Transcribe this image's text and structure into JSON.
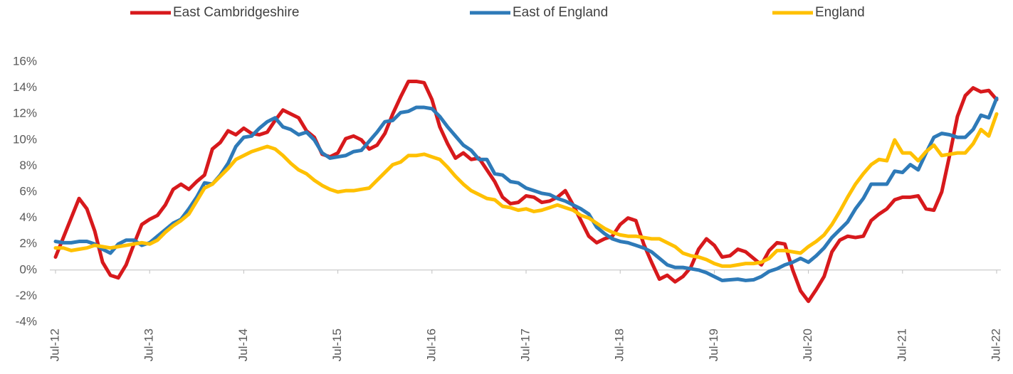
{
  "chart_data": {
    "type": "line",
    "categories": [
      "Jul-12",
      null,
      null,
      null,
      null,
      null,
      null,
      null,
      null,
      null,
      null,
      null,
      "Jul-13",
      null,
      null,
      null,
      null,
      null,
      null,
      null,
      null,
      null,
      null,
      null,
      "Jul-14",
      null,
      null,
      null,
      null,
      null,
      null,
      null,
      null,
      null,
      null,
      null,
      "Jul-15",
      null,
      null,
      null,
      null,
      null,
      null,
      null,
      null,
      null,
      null,
      null,
      "Jul-16",
      null,
      null,
      null,
      null,
      null,
      null,
      null,
      null,
      null,
      null,
      null,
      "Jul-17",
      null,
      null,
      null,
      null,
      null,
      null,
      null,
      null,
      null,
      null,
      null,
      "Jul-18",
      null,
      null,
      null,
      null,
      null,
      null,
      null,
      null,
      null,
      null,
      null,
      "Jul-19",
      null,
      null,
      null,
      null,
      null,
      null,
      null,
      null,
      null,
      null,
      null,
      "Jul-20",
      null,
      null,
      null,
      null,
      null,
      null,
      null,
      null,
      null,
      null,
      null,
      "Jul-21",
      null,
      null,
      null,
      null,
      null,
      null,
      null,
      null,
      null,
      null,
      null,
      "Jul-22"
    ],
    "series": [
      {
        "name": "East Cambridgeshire",
        "color": "#d7191c",
        "values": [
          1.0,
          2.5,
          4.0,
          5.5,
          4.7,
          3.0,
          0.6,
          -0.4,
          -0.6,
          0.4,
          2.0,
          3.5,
          3.9,
          4.2,
          5.0,
          6.2,
          6.6,
          6.2,
          6.8,
          7.3,
          9.3,
          9.8,
          10.7,
          10.4,
          10.9,
          10.5,
          10.4,
          10.6,
          11.5,
          12.3,
          12.0,
          11.7,
          10.7,
          10.2,
          8.9,
          8.7,
          9.0,
          10.1,
          10.3,
          10.0,
          9.3,
          9.6,
          10.5,
          12.0,
          13.3,
          14.5,
          14.5,
          14.4,
          13.1,
          11.0,
          9.7,
          8.6,
          9.0,
          8.5,
          8.6,
          7.7,
          6.8,
          5.6,
          5.1,
          5.2,
          5.7,
          5.6,
          5.2,
          5.3,
          5.6,
          6.1,
          5.0,
          3.8,
          2.6,
          2.1,
          2.4,
          2.6,
          3.5,
          4.0,
          3.8,
          2.0,
          0.6,
          -0.7,
          -0.4,
          -0.9,
          -0.5,
          0.2,
          1.6,
          2.4,
          1.9,
          1.0,
          1.1,
          1.6,
          1.4,
          0.9,
          0.4,
          1.5,
          2.1,
          2.0,
          0.0,
          -1.6,
          -2.4,
          -1.5,
          -0.5,
          1.4,
          2.3,
          2.6,
          2.5,
          2.6,
          3.8,
          4.3,
          4.7,
          5.4,
          5.6,
          5.6,
          5.7,
          4.7,
          4.6,
          6.0,
          8.8,
          11.8,
          13.4,
          14.0,
          13.7,
          13.8,
          13.1
        ]
      },
      {
        "name": "East of England",
        "color": "#2e7ab8",
        "values": [
          2.2,
          2.1,
          2.1,
          2.2,
          2.2,
          2.0,
          1.6,
          1.3,
          2.0,
          2.3,
          2.3,
          1.9,
          2.1,
          2.6,
          3.1,
          3.6,
          3.9,
          4.7,
          5.6,
          6.7,
          6.6,
          7.3,
          8.2,
          9.5,
          10.2,
          10.3,
          10.9,
          11.4,
          11.7,
          11.0,
          10.8,
          10.4,
          10.6,
          10.0,
          9.0,
          8.6,
          8.7,
          8.8,
          9.1,
          9.2,
          9.9,
          10.6,
          11.4,
          11.5,
          12.1,
          12.2,
          12.5,
          12.5,
          12.4,
          11.8,
          11.0,
          10.3,
          9.6,
          9.2,
          8.5,
          8.5,
          7.4,
          7.3,
          6.8,
          6.7,
          6.3,
          6.1,
          5.9,
          5.8,
          5.5,
          5.3,
          5.0,
          4.7,
          4.3,
          3.3,
          2.8,
          2.4,
          2.2,
          2.1,
          1.9,
          1.7,
          1.4,
          0.9,
          0.4,
          0.2,
          0.2,
          0.1,
          0.0,
          -0.2,
          -0.5,
          -0.8,
          -0.75,
          -0.7,
          -0.8,
          -0.75,
          -0.5,
          -0.1,
          0.1,
          0.4,
          0.6,
          0.9,
          0.6,
          1.1,
          1.7,
          2.5,
          3.1,
          3.7,
          4.7,
          5.5,
          6.6,
          6.6,
          6.6,
          7.6,
          7.5,
          8.1,
          7.7,
          9.0,
          10.2,
          10.5,
          10.4,
          10.2,
          10.2,
          10.8,
          11.9,
          11.7,
          13.2
        ]
      },
      {
        "name": "England",
        "color": "#ffc000",
        "values": [
          1.7,
          1.7,
          1.5,
          1.6,
          1.7,
          1.9,
          1.8,
          1.7,
          1.8,
          1.9,
          2.0,
          2.1,
          2.0,
          2.3,
          2.9,
          3.4,
          3.8,
          4.3,
          5.3,
          6.3,
          6.6,
          7.2,
          7.8,
          8.5,
          8.8,
          9.1,
          9.3,
          9.5,
          9.3,
          8.8,
          8.2,
          7.7,
          7.4,
          6.9,
          6.5,
          6.2,
          6.0,
          6.1,
          6.1,
          6.2,
          6.3,
          6.9,
          7.5,
          8.1,
          8.3,
          8.8,
          8.8,
          8.9,
          8.7,
          8.5,
          7.9,
          7.2,
          6.6,
          6.1,
          5.8,
          5.5,
          5.4,
          4.9,
          4.8,
          4.6,
          4.7,
          4.5,
          4.6,
          4.8,
          5.0,
          4.8,
          4.6,
          4.2,
          4.0,
          3.6,
          3.2,
          2.9,
          2.7,
          2.6,
          2.6,
          2.5,
          2.4,
          2.4,
          2.1,
          1.8,
          1.3,
          1.1,
          1.0,
          0.8,
          0.5,
          0.3,
          0.3,
          0.4,
          0.5,
          0.5,
          0.6,
          0.9,
          1.5,
          1.5,
          1.4,
          1.3,
          1.8,
          2.2,
          2.7,
          3.5,
          4.5,
          5.6,
          6.6,
          7.4,
          8.1,
          8.5,
          8.4,
          10.0,
          9.0,
          9.0,
          8.4,
          9.1,
          9.6,
          8.8,
          8.9,
          9.0,
          9.0,
          9.7,
          10.8,
          10.3,
          12.0
        ]
      }
    ],
    "ylim": [
      -4,
      16
    ],
    "yticks": [
      {
        "value": -4,
        "label": "-4%"
      },
      {
        "value": -2,
        "label": "-2%"
      },
      {
        "value": 0,
        "label": "0%"
      },
      {
        "value": 2,
        "label": "2%"
      },
      {
        "value": 4,
        "label": "4%"
      },
      {
        "value": 6,
        "label": "6%"
      },
      {
        "value": 8,
        "label": "8%"
      },
      {
        "value": 10,
        "label": "10%"
      },
      {
        "value": 12,
        "label": "12%"
      },
      {
        "value": 14,
        "label": "14%"
      },
      {
        "value": 16,
        "label": "16%"
      }
    ],
    "grid": false,
    "legend": "top"
  }
}
